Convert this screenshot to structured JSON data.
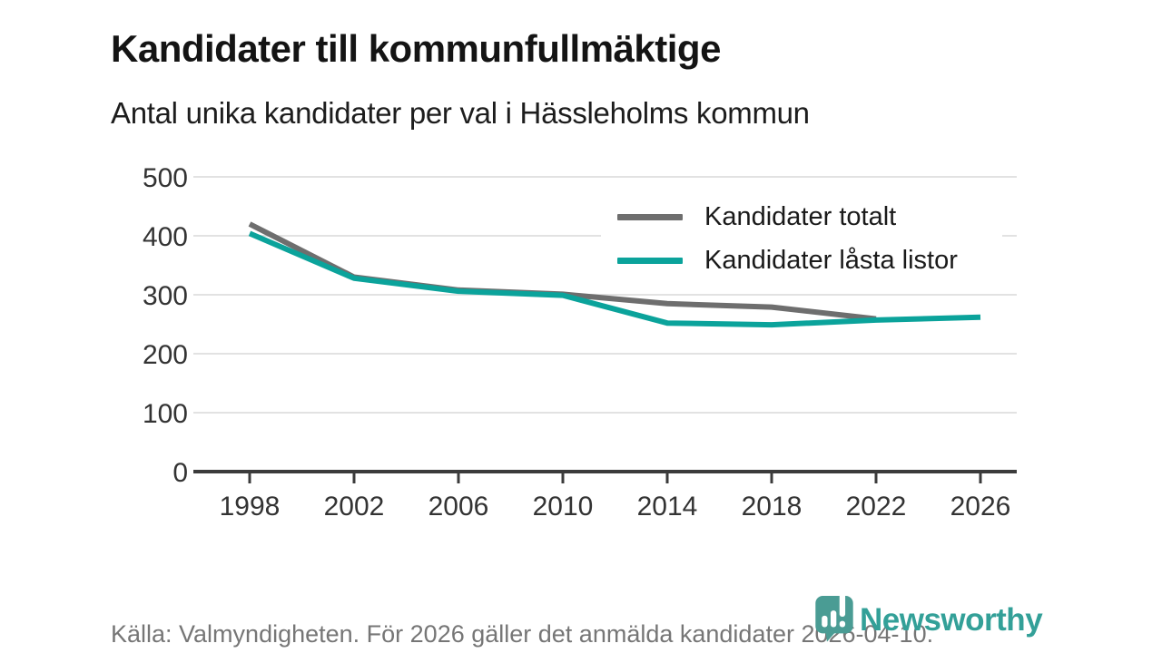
{
  "header": {
    "title": "Kandidater till kommunfullmäktige",
    "subtitle": "Antal unika kandidater per val i Hässleholms kommun"
  },
  "chart_data": {
    "type": "line",
    "x": [
      1998,
      2002,
      2006,
      2010,
      2014,
      2018,
      2022,
      2026
    ],
    "series": [
      {
        "name": "Kandidater totalt",
        "color": "#6e6e6e",
        "values": [
          420,
          330,
          308,
          301,
          285,
          279,
          259,
          null
        ]
      },
      {
        "name": "Kandidater låsta listor",
        "color": "#0ba39b",
        "values": [
          404,
          328,
          306,
          299,
          252,
          249,
          257,
          262
        ]
      }
    ],
    "ylim": [
      0,
      500
    ],
    "yticks": [
      0,
      100,
      200,
      300,
      400,
      500
    ],
    "grid": "horizontal",
    "legend_position": "top-right-inside",
    "axis_color": "#3b3b3b",
    "grid_color": "#e2e2e2",
    "tick_label_color": "#333333"
  },
  "footer": {
    "source": "Källa: Valmyndigheten. För 2026 gäller det anmälda kandidater 2026-04-10."
  },
  "logo": {
    "text": "Newsworthy",
    "icon": "newsworthy-speech-bubble-chart-icon",
    "color": "#33a098",
    "icon_color": "#4a9c94"
  }
}
